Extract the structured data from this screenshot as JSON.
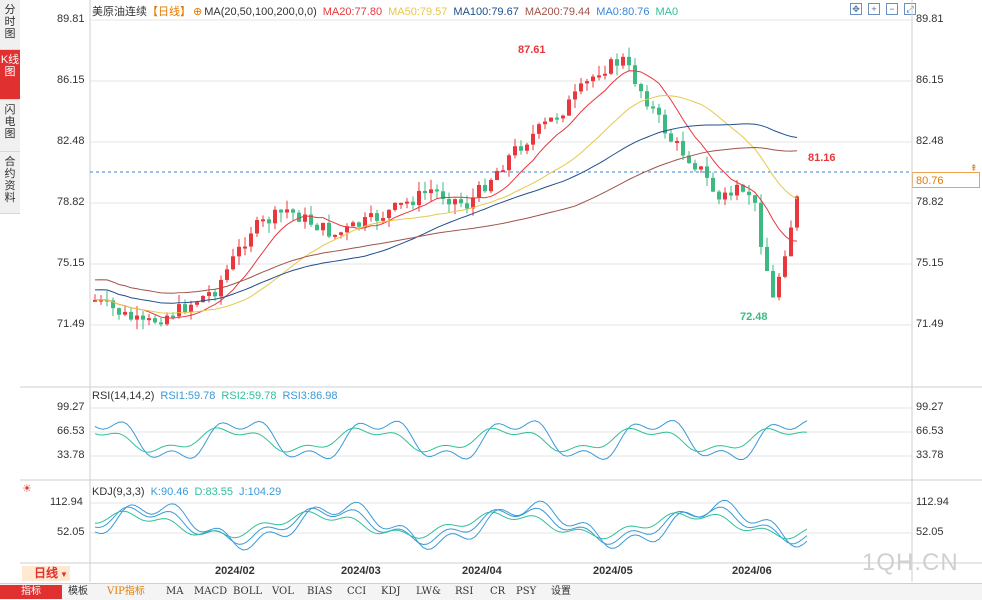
{
  "sidebar": {
    "tabs": [
      {
        "label": "分时图",
        "active": false
      },
      {
        "label": "K线图",
        "active": true
      },
      {
        "label": "闪电图",
        "active": false
      },
      {
        "label": "合约资料",
        "active": false
      }
    ]
  },
  "header": {
    "title": "美原油连续",
    "period": "【日线】",
    "ma_params": "MA(20,50,100,200,0,0)",
    "ma_values": [
      {
        "label": "MA20:77.80",
        "color": "#e8383d"
      },
      {
        "label": "MA50:79.57",
        "color": "#e6c84a"
      },
      {
        "label": "MA100:79.67",
        "color": "#1f4e8c"
      },
      {
        "label": "MA200:79.44",
        "color": "#a0524a"
      },
      {
        "label": "MA0:80.76",
        "color": "#3a86d8"
      },
      {
        "label": "MA0",
        "color": "#2fc09a"
      }
    ],
    "tools": [
      "fit-icon",
      "expand-icon",
      "shrink-icon",
      "fullscreen-icon"
    ]
  },
  "main_axis": {
    "ticks": [
      "89.81",
      "86.15",
      "82.48",
      "78.82",
      "75.15",
      "71.49"
    ],
    "current_price": "80.76"
  },
  "annotations": {
    "high": "87.61",
    "low": "72.48",
    "last_high": "81.16"
  },
  "rsi": {
    "title": "RSI(14,14,2)",
    "values": [
      {
        "label": "RSI1:59.78",
        "color": "#3a9ad9"
      },
      {
        "label": "RSI2:59.78",
        "color": "#2fc09a"
      },
      {
        "label": "RSI3:86.98",
        "color": "#3a9ad9"
      }
    ],
    "ticks": [
      "99.27",
      "66.53",
      "33.78"
    ]
  },
  "kdj": {
    "title": "KDJ(9,3,3)",
    "values": [
      {
        "label": "K:90.46",
        "color": "#3a9ad9"
      },
      {
        "label": "D:83.55",
        "color": "#2fc09a"
      },
      {
        "label": "J:104.29",
        "color": "#3a9ad9"
      }
    ],
    "ticks": [
      "112.94",
      "52.05"
    ]
  },
  "x_axis": {
    "labels": [
      "2024/02",
      "2024/03",
      "2024/04",
      "2024/05",
      "2024/06"
    ]
  },
  "period_selector": {
    "label": "日线",
    "arrow": "▼"
  },
  "bottom_bar": {
    "items": [
      "指标",
      "模板",
      "VIP指标",
      "MA",
      "MACD",
      "BOLL",
      "VOL",
      "BIAS",
      "CCI",
      "KDJ",
      "LW&",
      "RSI",
      "CR",
      "PSY",
      "设置"
    ]
  },
  "watermark": "1QH.CN",
  "colors": {
    "up": "#e8383d",
    "down": "#3dba82",
    "grid": "#e6e6e6"
  }
}
